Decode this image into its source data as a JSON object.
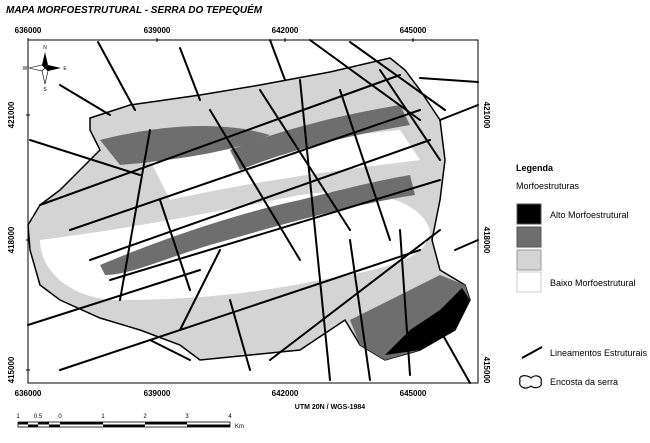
{
  "header": {
    "title": "MAPA MORFOESTRUTURAL - SERRA DO TEPEQUÉM"
  },
  "map": {
    "x_labels": [
      "636000",
      "639000",
      "642000",
      "645000"
    ],
    "y_labels": [
      "421000",
      "418000",
      "415000"
    ],
    "compass": {
      "north": "N",
      "south": "S",
      "east": "E",
      "west": "W"
    },
    "projection": "UTM 20N / WGS-1984"
  },
  "legend": {
    "title": "Legenda",
    "subtitle": "Morfoestruturas",
    "classes": [
      "Alto Morfoestrutural",
      "Baixo Morfoestrutural"
    ],
    "lines": "Lineamentos Estruturais",
    "outline": "Encosta da serra"
  },
  "scale_bar": {
    "labels": [
      "1",
      "0.5",
      "0",
      "1",
      "2",
      "3",
      "4"
    ],
    "unit": "Km"
  }
}
